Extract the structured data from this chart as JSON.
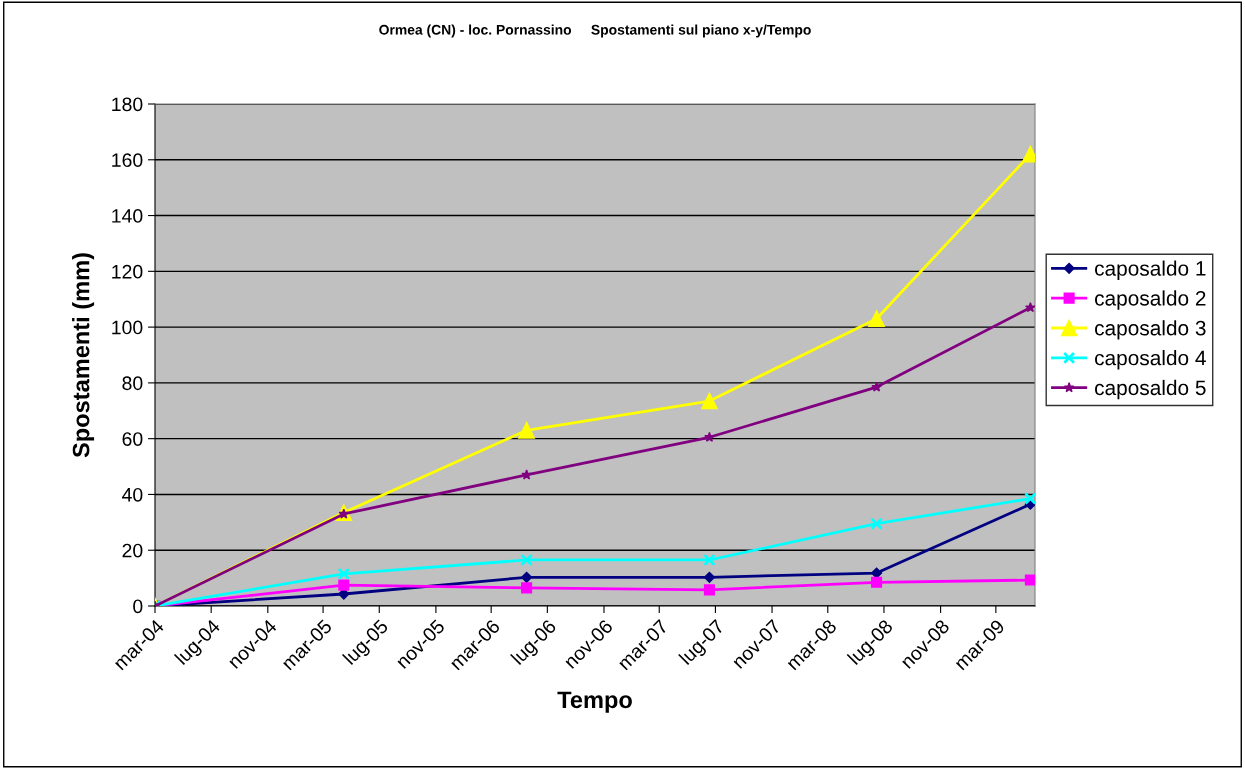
{
  "chart_data": {
    "type": "line",
    "title": "Ormea (CN) - loc. Pornassino     Spostamenti sul piano x-y/Tempo",
    "xlabel": "Tempo",
    "ylabel": "Spostamenti (mm)",
    "x": [
      "2004-03-01",
      "2005-04-15",
      "2006-05-17",
      "2007-06-18",
      "2008-06-15",
      "2009-05-15"
    ],
    "series": [
      {
        "name": "caposaldo 1",
        "color": "#000080",
        "marker": "diamond",
        "values": [
          0,
          4.3,
          10.3,
          10.3,
          11.8,
          36.5
        ]
      },
      {
        "name": "caposaldo 2",
        "color": "#ff00ff",
        "marker": "square",
        "values": [
          0,
          7.5,
          6.5,
          5.8,
          8.5,
          9.3
        ]
      },
      {
        "name": "caposaldo 3",
        "color": "#ffff00",
        "marker": "triangle",
        "values": [
          0,
          33.5,
          63,
          73.5,
          103,
          162
        ]
      },
      {
        "name": "caposaldo 4",
        "color": "#00ffff",
        "marker": "cross",
        "values": [
          0,
          11.5,
          16.5,
          16.5,
          29.5,
          38.5
        ]
      },
      {
        "name": "caposaldo 5",
        "color": "#800080",
        "marker": "star",
        "values": [
          0,
          33,
          47,
          60.5,
          78.5,
          107
        ]
      }
    ],
    "xlim": [
      "2004-03-01",
      "2009-05-25"
    ],
    "xticks": [
      {
        "value": "2004-03-01",
        "label": "mar-04"
      },
      {
        "value": "2004-07-01",
        "label": "lug-04"
      },
      {
        "value": "2004-11-01",
        "label": "nov-04"
      },
      {
        "value": "2005-03-01",
        "label": "mar-05"
      },
      {
        "value": "2005-07-01",
        "label": "lug-05"
      },
      {
        "value": "2005-11-01",
        "label": "nov-05"
      },
      {
        "value": "2006-03-01",
        "label": "mar-06"
      },
      {
        "value": "2006-07-01",
        "label": "lug-06"
      },
      {
        "value": "2006-11-01",
        "label": "nov-06"
      },
      {
        "value": "2007-03-01",
        "label": "mar-07"
      },
      {
        "value": "2007-07-01",
        "label": "lug-07"
      },
      {
        "value": "2007-11-01",
        "label": "nov-07"
      },
      {
        "value": "2008-03-01",
        "label": "mar-08"
      },
      {
        "value": "2008-07-01",
        "label": "lug-08"
      },
      {
        "value": "2008-11-01",
        "label": "nov-08"
      },
      {
        "value": "2009-03-01",
        "label": "mar-09"
      }
    ],
    "ylim": [
      0,
      180
    ],
    "yticks": [
      0,
      20,
      40,
      60,
      80,
      100,
      120,
      140,
      160,
      180
    ],
    "grid": "y",
    "legend": "right",
    "line_style": "solid"
  }
}
